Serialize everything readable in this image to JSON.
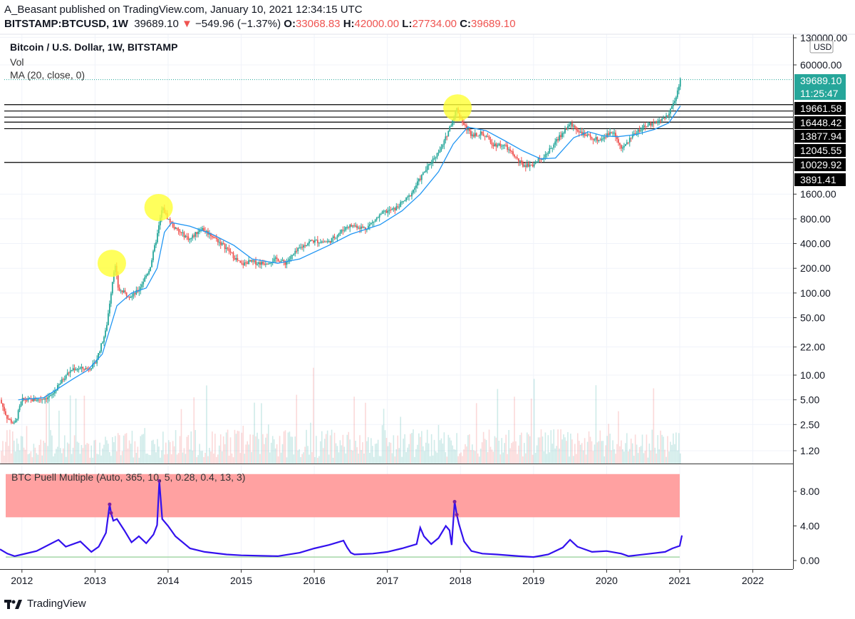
{
  "header": {
    "publisher_line": "A_Beasant published on TradingView.com, January 10, 2021 12:34:15 UTC",
    "symbol": "BITSTAMP:BTCUSD, 1W",
    "last": "39689.10",
    "change": "−549.96 (−1.37%)",
    "o_label": "O:",
    "o_value": "33068.83",
    "h_label": "H:",
    "h_value": "42000.00",
    "l_label": "L:",
    "l_value": "27734.00",
    "c_label": "C:",
    "c_value": "39689.10"
  },
  "legend": {
    "title": "Bitcoin / U.S. Dollar, 1W, BITSTAMP",
    "vol": "Vol",
    "ma": "MA (20, close, 0)",
    "puell": "BTC Puell Multiple (Auto, 365, 10, 5, 0.28, 0.4, 13, 3)"
  },
  "price_scale": {
    "currency": "USD",
    "ticks": [
      "130000.00",
      "60000.00",
      "1600.00",
      "800.00",
      "400.00",
      "200.00",
      "100.00",
      "50.00",
      "22.00",
      "10.00",
      "5.00",
      "2.50",
      "1.20"
    ],
    "tick_values": [
      130000,
      60000,
      1600,
      800,
      400,
      200,
      100,
      50,
      22,
      10,
      5,
      2.5,
      1.2
    ],
    "last_price_badge": "39689.10",
    "countdown_badge": "11:25:47",
    "level_badges": [
      "19661.58",
      "16448.42",
      "13877.94",
      "12045.55",
      "10029.92",
      "3891.41"
    ]
  },
  "puell_scale": {
    "ticks": [
      "8.00",
      "4.00",
      "0.00"
    ],
    "tick_values": [
      8,
      4,
      0
    ]
  },
  "time_axis": {
    "labels": [
      "2012",
      "2013",
      "2014",
      "2015",
      "2016",
      "2017",
      "2018",
      "2019",
      "2020",
      "2021",
      "2022"
    ],
    "years": [
      2012,
      2013,
      2014,
      2015,
      2016,
      2017,
      2018,
      2019,
      2020,
      2021,
      2022
    ]
  },
  "colors": {
    "up": "#26a69a",
    "down": "#ef5350",
    "ma": "#2196f3",
    "puell": "#3311ee",
    "puell_peak": "#7b1fa2",
    "sell_zone": "#ff9c9c",
    "buy_line": "#a5d6a7",
    "highlight": "#ffff33",
    "badge_green": "#26a69a",
    "badge_black": "#000000"
  },
  "footer": {
    "brand": "TradingView"
  },
  "chart_data": [
    {
      "type": "candlestick",
      "title": "Bitcoin / U.S. Dollar, 1W, BITSTAMP",
      "y_scale": "log",
      "ylim": [
        1.0,
        130000
      ],
      "xlim": [
        2011.7,
        2022.55
      ],
      "price_path": [
        [
          2011.7,
          5
        ],
        [
          2011.8,
          3
        ],
        [
          2011.9,
          2.5
        ],
        [
          2012.0,
          5
        ],
        [
          2012.2,
          5
        ],
        [
          2012.4,
          5.5
        ],
        [
          2012.6,
          10
        ],
        [
          2012.7,
          12
        ],
        [
          2012.9,
          12
        ],
        [
          2013.0,
          13.5
        ],
        [
          2013.15,
          35
        ],
        [
          2013.27,
          230
        ],
        [
          2013.32,
          110
        ],
        [
          2013.5,
          90
        ],
        [
          2013.6,
          110
        ],
        [
          2013.75,
          200
        ],
        [
          2013.85,
          500
        ],
        [
          2013.92,
          1100
        ],
        [
          2014.0,
          800
        ],
        [
          2014.1,
          600
        ],
        [
          2014.3,
          450
        ],
        [
          2014.45,
          620
        ],
        [
          2014.6,
          500
        ],
        [
          2014.8,
          350
        ],
        [
          2015.0,
          220
        ],
        [
          2015.1,
          240
        ],
        [
          2015.3,
          230
        ],
        [
          2015.5,
          260
        ],
        [
          2015.6,
          230
        ],
        [
          2015.8,
          350
        ],
        [
          2015.95,
          430
        ],
        [
          2016.2,
          420
        ],
        [
          2016.45,
          650
        ],
        [
          2016.55,
          660
        ],
        [
          2016.7,
          610
        ],
        [
          2016.95,
          960
        ],
        [
          2017.1,
          1050
        ],
        [
          2017.3,
          1500
        ],
        [
          2017.45,
          2500
        ],
        [
          2017.6,
          4000
        ],
        [
          2017.75,
          6000
        ],
        [
          2017.95,
          17500
        ],
        [
          2018.05,
          11000
        ],
        [
          2018.15,
          8500
        ],
        [
          2018.3,
          8800
        ],
        [
          2018.45,
          6500
        ],
        [
          2018.6,
          6300
        ],
        [
          2018.85,
          3600
        ],
        [
          2019.0,
          3700
        ],
        [
          2019.2,
          5200
        ],
        [
          2019.4,
          9000
        ],
        [
          2019.5,
          11500
        ],
        [
          2019.7,
          8300
        ],
        [
          2019.9,
          7300
        ],
        [
          2020.1,
          9500
        ],
        [
          2020.2,
          5500
        ],
        [
          2020.4,
          9200
        ],
        [
          2020.6,
          11500
        ],
        [
          2020.8,
          13500
        ],
        [
          2020.9,
          19000
        ],
        [
          2020.95,
          24000
        ],
        [
          2021.01,
          39689
        ]
      ],
      "ma_path": [
        [
          2011.95,
          5
        ],
        [
          2012.3,
          5.3
        ],
        [
          2012.7,
          9
        ],
        [
          2012.9,
          11.5
        ],
        [
          2013.1,
          18
        ],
        [
          2013.3,
          70
        ],
        [
          2013.5,
          100
        ],
        [
          2013.7,
          115
        ],
        [
          2013.85,
          200
        ],
        [
          2013.95,
          550
        ],
        [
          2014.05,
          720
        ],
        [
          2014.3,
          650
        ],
        [
          2014.6,
          520
        ],
        [
          2014.9,
          380
        ],
        [
          2015.15,
          260
        ],
        [
          2015.5,
          230
        ],
        [
          2015.8,
          260
        ],
        [
          2016.2,
          380
        ],
        [
          2016.5,
          520
        ],
        [
          2016.9,
          680
        ],
        [
          2017.2,
          1000
        ],
        [
          2017.45,
          1600
        ],
        [
          2017.7,
          3000
        ],
        [
          2017.9,
          6500
        ],
        [
          2018.1,
          10500
        ],
        [
          2018.35,
          9500
        ],
        [
          2018.6,
          7200
        ],
        [
          2018.85,
          5400
        ],
        [
          2019.1,
          4300
        ],
        [
          2019.3,
          4400
        ],
        [
          2019.55,
          7800
        ],
        [
          2019.75,
          9200
        ],
        [
          2019.95,
          8200
        ],
        [
          2020.15,
          8000
        ],
        [
          2020.4,
          8500
        ],
        [
          2020.65,
          9800
        ],
        [
          2020.85,
          11800
        ],
        [
          2021.01,
          19000
        ]
      ],
      "horizontal_levels": [
        19661.58,
        16448.42,
        13877.94,
        12045.55,
        10029.92,
        3891.41
      ],
      "highlighted_peaks": [
        {
          "x": 2013.23,
          "y": 230
        },
        {
          "x": 2013.87,
          "y": 1100
        },
        {
          "x": 2017.96,
          "y": 18000
        }
      ]
    },
    {
      "type": "line",
      "title": "BTC Puell Multiple (Auto, 365, 10, 5, 0.28, 0.4, 13, 3)",
      "ylim": [
        -0.6,
        10.2
      ],
      "sell_zone": [
        5,
        10
      ],
      "buy_level": 0.4,
      "x": [
        2011.7,
        2011.8,
        2011.9,
        2012.0,
        2012.2,
        2012.5,
        2012.6,
        2012.8,
        2012.95,
        2013.05,
        2013.15,
        2013.2,
        2013.22,
        2013.25,
        2013.3,
        2013.4,
        2013.5,
        2013.6,
        2013.7,
        2013.8,
        2013.85,
        2013.88,
        2013.92,
        2014.0,
        2014.1,
        2014.3,
        2014.5,
        2014.8,
        2015.0,
        2015.5,
        2015.8,
        2016.0,
        2016.2,
        2016.4,
        2016.45,
        2016.5,
        2016.55,
        2016.8,
        2017.0,
        2017.2,
        2017.4,
        2017.45,
        2017.5,
        2017.6,
        2017.7,
        2017.8,
        2017.85,
        2017.88,
        2017.92,
        2017.95,
        2017.98,
        2018.05,
        2018.15,
        2018.3,
        2018.5,
        2018.8,
        2019.0,
        2019.2,
        2019.4,
        2019.5,
        2019.6,
        2019.8,
        2020.0,
        2020.2,
        2020.3,
        2020.4,
        2020.6,
        2020.8,
        2020.9,
        2021.0,
        2021.03
      ],
      "values": [
        1.3,
        0.8,
        0.5,
        0.7,
        1.1,
        2.4,
        1.6,
        2.2,
        1.0,
        1.6,
        3.2,
        6.5,
        5.5,
        4.6,
        4.8,
        3.5,
        2.1,
        2.8,
        2.0,
        3.0,
        4.1,
        9.2,
        4.8,
        4.0,
        2.8,
        1.4,
        1.0,
        0.7,
        0.6,
        0.5,
        0.9,
        1.4,
        1.8,
        2.3,
        1.5,
        0.9,
        0.7,
        0.8,
        1.0,
        1.4,
        1.9,
        3.8,
        2.8,
        1.9,
        2.6,
        4.0,
        3.5,
        1.8,
        6.8,
        5.3,
        4.2,
        2.2,
        1.1,
        0.8,
        0.7,
        0.5,
        0.4,
        0.7,
        1.5,
        2.4,
        1.6,
        1.0,
        1.1,
        0.8,
        0.5,
        0.6,
        0.8,
        1.0,
        1.4,
        1.7,
        2.9
      ]
    }
  ]
}
